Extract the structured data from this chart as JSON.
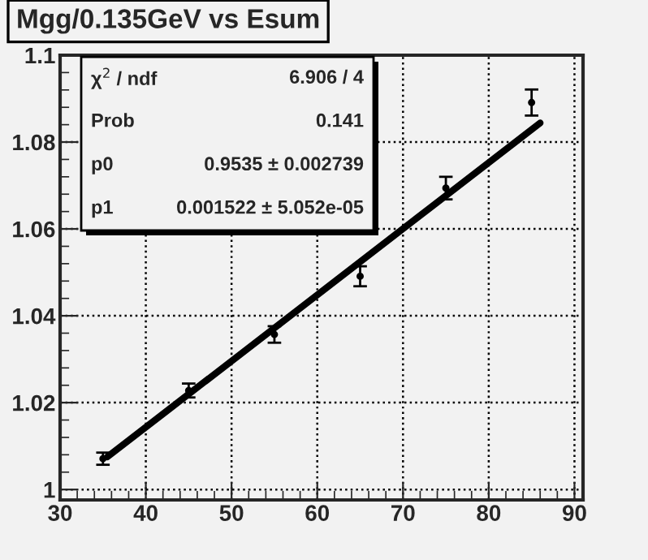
{
  "chart_data": {
    "type": "scatter",
    "title": "Mgg/0.135GeV vs Esum",
    "series": [
      {
        "color": "#000000",
        "marker": "circle",
        "x": [
          35,
          45,
          55,
          65,
          75,
          85
        ],
        "values": [
          1.0071,
          1.0228,
          1.0357,
          1.0491,
          1.0694,
          1.0891
        ],
        "errors": [
          0.0014,
          0.0016,
          0.0019,
          0.0023,
          0.0026,
          0.003
        ]
      },
      {
        "type": "line",
        "color": "#000000",
        "marker": "none",
        "line_style": "solid",
        "x": [
          35.5,
          86
        ],
        "values": [
          1.0075,
          1.0844
        ]
      }
    ],
    "xlim": [
      30,
      91
    ],
    "ylim": [
      0.9976,
      1.1
    ],
    "xticks": [
      30,
      40,
      50,
      60,
      70,
      80,
      90
    ],
    "yticks": [
      {
        "value": 1,
        "label": "1"
      },
      1.02,
      1.04,
      1.06,
      1.08,
      {
        "value": 1.1,
        "label": "1.1"
      }
    ],
    "grid": true,
    "legend": false,
    "annotations": [
      "χ$^{2}$ / ndf",
      "6.906 / 4",
      "Prob",
      "0.141",
      "p0",
      "0.9535 ± 0.002739",
      "p1",
      "0.001522 ± 5.052e-05"
    ]
  }
}
